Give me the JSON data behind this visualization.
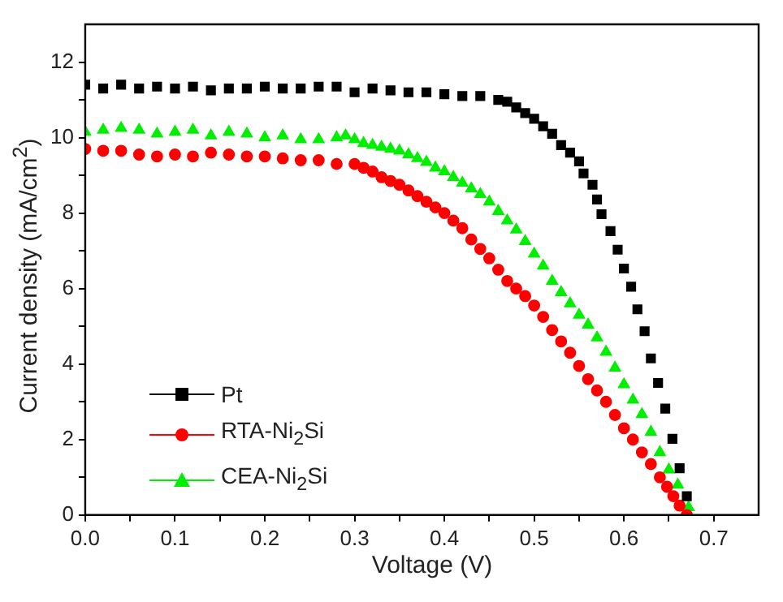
{
  "chart_data": {
    "type": "scatter",
    "xlabel": "Voltage (V)",
    "ylabel": "Current density (mA/cm$^{2}$)",
    "xlim": [
      0,
      0.75
    ],
    "ylim": [
      0,
      13
    ],
    "xticks": [
      {
        "value": 0,
        "label": "0.0"
      },
      {
        "value": 0.05,
        "label": null
      },
      {
        "value": 0.1,
        "label": "0.1"
      },
      {
        "value": 0.15,
        "label": null
      },
      {
        "value": 0.2,
        "label": "0.2"
      },
      {
        "value": 0.25,
        "label": null
      },
      {
        "value": 0.3,
        "label": "0.3"
      },
      {
        "value": 0.35,
        "label": null
      },
      {
        "value": 0.4,
        "label": "0.4"
      },
      {
        "value": 0.45,
        "label": null
      },
      {
        "value": 0.5,
        "label": "0.5"
      },
      {
        "value": 0.55,
        "label": null
      },
      {
        "value": 0.6,
        "label": "0.6"
      },
      {
        "value": 0.65,
        "label": null
      },
      {
        "value": 0.7,
        "label": "0.7"
      }
    ],
    "yticks": [
      0,
      {
        "value": 1,
        "label": null
      },
      2,
      {
        "value": 3,
        "label": null
      },
      4,
      {
        "value": 5,
        "label": null
      },
      6,
      {
        "value": 7,
        "label": null
      },
      8,
      {
        "value": 9,
        "label": null
      },
      10,
      {
        "value": 11,
        "label": null
      },
      12
    ],
    "grid": false,
    "legend": "bottom left",
    "series": [
      {
        "name": "Pt",
        "color": "#000000",
        "marker": "square",
        "x": [
          0,
          0.02,
          0.04,
          0.06,
          0.08,
          0.1,
          0.12,
          0.14,
          0.16,
          0.18,
          0.2,
          0.22,
          0.24,
          0.26,
          0.28,
          0.3,
          0.32,
          0.34,
          0.36,
          0.38,
          0.4,
          0.42,
          0.44,
          0.46,
          0.47,
          0.48,
          0.49,
          0.5,
          0.51,
          0.52,
          0.53,
          0.54,
          0.55,
          0.555,
          0.565,
          0.57,
          0.575,
          0.585,
          0.593,
          0.6,
          0.608,
          0.615,
          0.623,
          0.63,
          0.638,
          0.646,
          0.654,
          0.662,
          0.67
        ],
        "values": [
          11.4,
          11.3,
          11.4,
          11.3,
          11.35,
          11.3,
          11.35,
          11.25,
          11.3,
          11.3,
          11.35,
          11.3,
          11.3,
          11.35,
          11.35,
          11.2,
          11.3,
          11.25,
          11.2,
          11.2,
          11.15,
          11.1,
          11.1,
          11.0,
          10.95,
          10.8,
          10.65,
          10.5,
          10.3,
          10.1,
          9.8,
          9.6,
          9.37,
          9.05,
          8.75,
          8.36,
          7.97,
          7.52,
          7.03,
          6.53,
          6.05,
          5.45,
          4.87,
          4.15,
          3.5,
          2.82,
          2.02,
          1.24,
          0.5
        ]
      },
      {
        "name": "RTA-Ni$_{2}$Si",
        "color": "#ff0000",
        "marker": "circle",
        "x": [
          0,
          0.02,
          0.04,
          0.06,
          0.08,
          0.1,
          0.12,
          0.14,
          0.16,
          0.18,
          0.2,
          0.22,
          0.24,
          0.26,
          0.28,
          0.3,
          0.31,
          0.32,
          0.33,
          0.34,
          0.35,
          0.36,
          0.37,
          0.38,
          0.39,
          0.4,
          0.41,
          0.42,
          0.43,
          0.44,
          0.45,
          0.46,
          0.47,
          0.48,
          0.49,
          0.5,
          0.51,
          0.52,
          0.53,
          0.54,
          0.55,
          0.56,
          0.57,
          0.58,
          0.59,
          0.6,
          0.61,
          0.62,
          0.63,
          0.64,
          0.648,
          0.655,
          0.662,
          0.67
        ],
        "values": [
          9.7,
          9.65,
          9.65,
          9.55,
          9.5,
          9.55,
          9.5,
          9.6,
          9.55,
          9.5,
          9.5,
          9.45,
          9.4,
          9.4,
          9.3,
          9.3,
          9.2,
          9.1,
          8.95,
          8.85,
          8.75,
          8.6,
          8.45,
          8.3,
          8.15,
          8.0,
          7.8,
          7.6,
          7.3,
          7.05,
          6.8,
          6.5,
          6.2,
          6.0,
          5.8,
          5.55,
          5.25,
          4.9,
          4.6,
          4.3,
          3.95,
          3.6,
          3.3,
          3.0,
          2.65,
          2.3,
          2.0,
          1.66,
          1.35,
          1.0,
          0.75,
          0.5,
          0.25,
          0
        ]
      },
      {
        "name": "CEA-Ni$_{2}$Si",
        "color": "#00ee00",
        "marker": "triangle",
        "x": [
          0,
          0.02,
          0.04,
          0.06,
          0.08,
          0.1,
          0.12,
          0.14,
          0.16,
          0.18,
          0.2,
          0.22,
          0.24,
          0.26,
          0.28,
          0.29,
          0.3,
          0.31,
          0.32,
          0.33,
          0.34,
          0.35,
          0.36,
          0.37,
          0.38,
          0.39,
          0.4,
          0.41,
          0.42,
          0.43,
          0.44,
          0.45,
          0.46,
          0.47,
          0.48,
          0.49,
          0.5,
          0.51,
          0.52,
          0.53,
          0.54,
          0.55,
          0.56,
          0.57,
          0.58,
          0.59,
          0.6,
          0.61,
          0.62,
          0.63,
          0.64,
          0.65,
          0.66,
          0.666,
          0.672
        ],
        "values": [
          10.15,
          10.2,
          10.25,
          10.2,
          10.1,
          10.15,
          10.2,
          10.05,
          10.15,
          10.1,
          10.0,
          10.05,
          9.95,
          9.95,
          10.0,
          10.05,
          9.95,
          9.85,
          9.8,
          9.75,
          9.7,
          9.65,
          9.55,
          9.45,
          9.35,
          9.2,
          9.1,
          8.95,
          8.8,
          8.65,
          8.5,
          8.3,
          8.05,
          7.8,
          7.56,
          7.25,
          6.92,
          6.6,
          6.2,
          5.9,
          5.6,
          5.3,
          5.04,
          4.7,
          4.32,
          3.9,
          3.46,
          3.05,
          2.67,
          2.2,
          1.66,
          1.2,
          0.8,
          null,
          0.2
        ]
      }
    ]
  }
}
